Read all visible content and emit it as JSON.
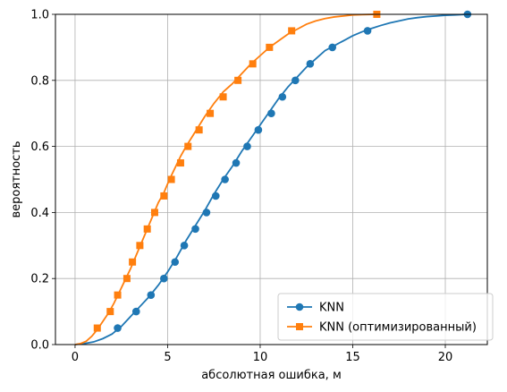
{
  "chart_data": {
    "type": "line",
    "xlabel": "абсолютная ошибка, м",
    "ylabel": "вероятность",
    "xlim": [
      -1.06,
      22.27
    ],
    "ylim": [
      0.0,
      1.0
    ],
    "xticks": [
      0,
      5,
      10,
      15,
      20
    ],
    "xtick_labels": [
      "0",
      "5",
      "10",
      "15",
      "20"
    ],
    "yticks": [
      0.0,
      0.2,
      0.4,
      0.6,
      0.8,
      1.0
    ],
    "ytick_labels": [
      "0.0",
      "0.2",
      "0.4",
      "0.6",
      "0.8",
      "1.0"
    ],
    "grid": true,
    "legend_position": "lower-right",
    "series": [
      {
        "name": "KNN",
        "color": "#1f77b4",
        "marker": "circle",
        "curve": [
          [
            0.0,
            0.0
          ],
          [
            0.5,
            0.003
          ],
          [
            1.0,
            0.008
          ],
          [
            1.5,
            0.018
          ],
          [
            2.0,
            0.032
          ],
          [
            2.5,
            0.055
          ],
          [
            3.0,
            0.085
          ],
          [
            3.5,
            0.115
          ],
          [
            4.0,
            0.145
          ],
          [
            4.5,
            0.18
          ],
          [
            5.0,
            0.22
          ],
          [
            5.5,
            0.265
          ],
          [
            6.0,
            0.315
          ],
          [
            6.5,
            0.36
          ],
          [
            7.0,
            0.405
          ],
          [
            7.5,
            0.455
          ],
          [
            8.0,
            0.5
          ],
          [
            8.5,
            0.54
          ],
          [
            9.0,
            0.585
          ],
          [
            9.5,
            0.625
          ],
          [
            10.0,
            0.665
          ],
          [
            10.5,
            0.705
          ],
          [
            11.0,
            0.745
          ],
          [
            11.5,
            0.78
          ],
          [
            12.0,
            0.81
          ],
          [
            12.5,
            0.84
          ],
          [
            13.0,
            0.865
          ],
          [
            13.5,
            0.89
          ],
          [
            14.0,
            0.905
          ],
          [
            14.5,
            0.92
          ],
          [
            15.0,
            0.935
          ],
          [
            15.5,
            0.947
          ],
          [
            16.0,
            0.957
          ],
          [
            16.5,
            0.966
          ],
          [
            17.0,
            0.974
          ],
          [
            17.5,
            0.98
          ],
          [
            18.0,
            0.986
          ],
          [
            18.5,
            0.99
          ],
          [
            19.0,
            0.993
          ],
          [
            19.5,
            0.995
          ],
          [
            20.0,
            0.997
          ],
          [
            20.5,
            0.998
          ],
          [
            21.2,
            1.0
          ]
        ],
        "markers": [
          [
            2.3,
            0.05
          ],
          [
            3.3,
            0.1
          ],
          [
            4.1,
            0.15
          ],
          [
            4.8,
            0.2
          ],
          [
            5.4,
            0.25
          ],
          [
            5.9,
            0.3
          ],
          [
            6.5,
            0.35
          ],
          [
            7.1,
            0.4
          ],
          [
            7.6,
            0.45
          ],
          [
            8.1,
            0.5
          ],
          [
            8.7,
            0.55
          ],
          [
            9.3,
            0.6
          ],
          [
            9.9,
            0.65
          ],
          [
            10.6,
            0.7
          ],
          [
            11.2,
            0.75
          ],
          [
            11.9,
            0.8
          ],
          [
            12.7,
            0.85
          ],
          [
            13.9,
            0.9
          ],
          [
            15.8,
            0.95
          ],
          [
            21.2,
            1.0
          ]
        ]
      },
      {
        "name": "KNN (оптимизированный)",
        "color": "#ff7f0e",
        "marker": "square",
        "curve": [
          [
            0.0,
            0.0
          ],
          [
            0.3,
            0.003
          ],
          [
            0.6,
            0.01
          ],
          [
            0.9,
            0.025
          ],
          [
            1.2,
            0.045
          ],
          [
            1.5,
            0.07
          ],
          [
            1.8,
            0.095
          ],
          [
            2.1,
            0.125
          ],
          [
            2.4,
            0.16
          ],
          [
            2.7,
            0.195
          ],
          [
            3.0,
            0.23
          ],
          [
            3.3,
            0.27
          ],
          [
            3.6,
            0.31
          ],
          [
            3.9,
            0.35
          ],
          [
            4.2,
            0.39
          ],
          [
            4.5,
            0.43
          ],
          [
            4.8,
            0.46
          ],
          [
            5.1,
            0.5
          ],
          [
            5.4,
            0.535
          ],
          [
            5.7,
            0.57
          ],
          [
            6.0,
            0.6
          ],
          [
            6.5,
            0.645
          ],
          [
            7.0,
            0.69
          ],
          [
            7.5,
            0.73
          ],
          [
            8.0,
            0.765
          ],
          [
            8.5,
            0.79
          ],
          [
            9.0,
            0.82
          ],
          [
            9.5,
            0.85
          ],
          [
            10.0,
            0.875
          ],
          [
            10.5,
            0.9
          ],
          [
            11.0,
            0.92
          ],
          [
            11.5,
            0.94
          ],
          [
            12.0,
            0.955
          ],
          [
            12.5,
            0.97
          ],
          [
            13.0,
            0.98
          ],
          [
            13.5,
            0.987
          ],
          [
            14.0,
            0.992
          ],
          [
            14.5,
            0.995
          ],
          [
            15.0,
            0.998
          ],
          [
            15.5,
            0.999
          ],
          [
            16.3,
            1.0
          ]
        ],
        "markers": [
          [
            1.2,
            0.05
          ],
          [
            1.9,
            0.1
          ],
          [
            2.3,
            0.15
          ],
          [
            2.8,
            0.2
          ],
          [
            3.1,
            0.25
          ],
          [
            3.5,
            0.3
          ],
          [
            3.9,
            0.35
          ],
          [
            4.3,
            0.4
          ],
          [
            4.8,
            0.45
          ],
          [
            5.2,
            0.5
          ],
          [
            5.7,
            0.55
          ],
          [
            6.1,
            0.6
          ],
          [
            6.7,
            0.65
          ],
          [
            7.3,
            0.7
          ],
          [
            8.0,
            0.75
          ],
          [
            8.8,
            0.8
          ],
          [
            9.6,
            0.85
          ],
          [
            10.5,
            0.9
          ],
          [
            11.7,
            0.95
          ],
          [
            16.3,
            1.0
          ]
        ]
      }
    ]
  }
}
